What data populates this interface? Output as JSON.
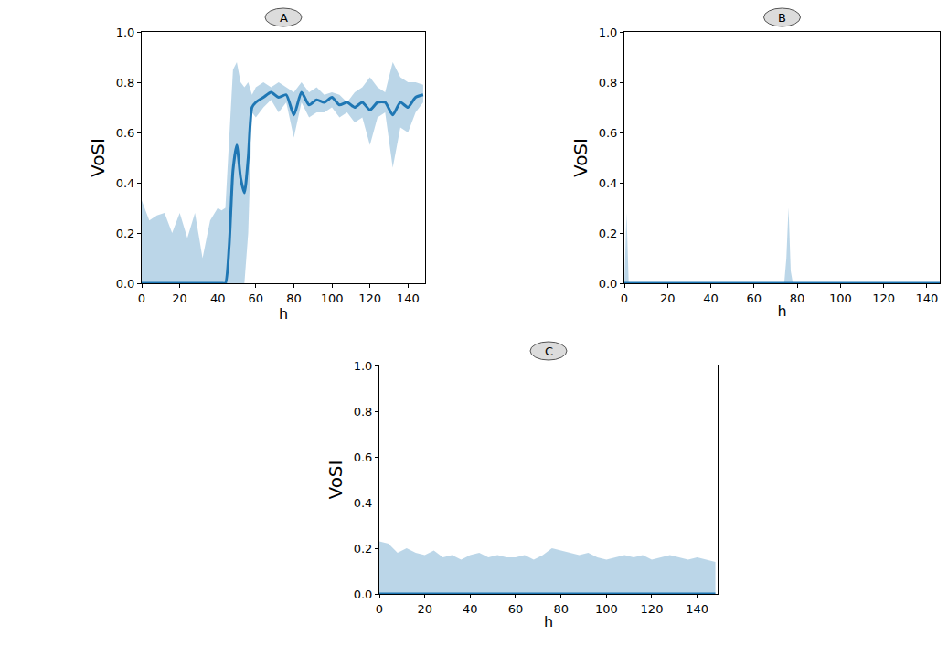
{
  "chart_data": [
    {
      "type": "line",
      "title": "A",
      "x_label": "h",
      "y_label": "VoSI",
      "x": [
        0,
        4,
        8,
        12,
        16,
        20,
        24,
        28,
        32,
        36,
        40,
        42,
        44,
        46,
        48,
        50,
        52,
        54,
        56,
        58,
        60,
        64,
        68,
        72,
        76,
        80,
        84,
        88,
        92,
        96,
        100,
        104,
        108,
        112,
        116,
        120,
        124,
        128,
        132,
        136,
        140,
        144,
        148
      ],
      "series": [
        {
          "color": "#1f77b4",
          "values": [
            0,
            0,
            0,
            0,
            0,
            0,
            0,
            0,
            0,
            0,
            0,
            0,
            0,
            0.15,
            0.45,
            0.55,
            0.42,
            0.36,
            0.5,
            0.7,
            0.72,
            0.74,
            0.76,
            0.74,
            0.75,
            0.67,
            0.76,
            0.71,
            0.73,
            0.72,
            0.74,
            0.71,
            0.72,
            0.7,
            0.72,
            0.69,
            0.72,
            0.72,
            0.67,
            0.72,
            0.7,
            0.74,
            0.75
          ],
          "lower": [
            0,
            0,
            0,
            0,
            0,
            0,
            0,
            0,
            0,
            0,
            0,
            0,
            0,
            0,
            0,
            0,
            0,
            0,
            0.2,
            0.68,
            0.66,
            0.7,
            0.73,
            0.68,
            0.72,
            0.58,
            0.72,
            0.66,
            0.68,
            0.68,
            0.7,
            0.66,
            0.68,
            0.64,
            0.66,
            0.55,
            0.66,
            0.68,
            0.46,
            0.62,
            0.6,
            0.68,
            0.72
          ],
          "upper": [
            0.33,
            0.25,
            0.27,
            0.28,
            0.2,
            0.28,
            0.18,
            0.28,
            0.1,
            0.25,
            0.3,
            0.29,
            0.3,
            0.6,
            0.85,
            0.88,
            0.8,
            0.78,
            0.8,
            0.75,
            0.78,
            0.8,
            0.78,
            0.8,
            0.78,
            0.76,
            0.8,
            0.76,
            0.78,
            0.75,
            0.76,
            0.75,
            0.72,
            0.76,
            0.78,
            0.82,
            0.78,
            0.76,
            0.88,
            0.82,
            0.8,
            0.8,
            0.79
          ]
        }
      ],
      "xlim": [
        0,
        149
      ],
      "ylim": [
        0,
        1
      ],
      "xticks": [
        0,
        20,
        40,
        60,
        80,
        100,
        120,
        140
      ],
      "yticks": [
        {
          "value": 0,
          "label": "0.0"
        },
        {
          "value": 0.2,
          "label": "0.2"
        },
        {
          "value": 0.4,
          "label": "0.4"
        },
        {
          "value": 0.6,
          "label": "0.6"
        },
        {
          "value": 0.8,
          "label": "0.8"
        },
        {
          "value": 1,
          "label": "1.0"
        }
      ]
    },
    {
      "type": "line",
      "title": "B",
      "x_label": "h",
      "y_label": "VoSI",
      "x": [
        0,
        1,
        2,
        3,
        74,
        75,
        76,
        77,
        78,
        146
      ],
      "series": [
        {
          "color": "#1f77b4",
          "values": [
            0,
            0,
            0,
            0,
            0,
            0,
            0,
            0,
            0,
            0
          ],
          "lower": [
            0,
            0,
            0,
            0,
            0,
            0,
            0,
            0,
            0,
            0
          ],
          "upper": [
            0,
            0.28,
            0,
            0,
            0,
            0.1,
            0.3,
            0.05,
            0,
            0
          ]
        }
      ],
      "xlim": [
        0,
        146
      ],
      "ylim": [
        0,
        1
      ],
      "xticks": [
        0,
        20,
        40,
        60,
        80,
        100,
        120,
        140
      ],
      "yticks": [
        {
          "value": 0,
          "label": "0.0"
        },
        {
          "value": 0.2,
          "label": "0.2"
        },
        {
          "value": 0.4,
          "label": "0.4"
        },
        {
          "value": 0.6,
          "label": "0.6"
        },
        {
          "value": 0.8,
          "label": "0.8"
        },
        {
          "value": 1,
          "label": "1.0"
        }
      ]
    },
    {
      "type": "line",
      "title": "C",
      "x_label": "h",
      "y_label": "VoSI",
      "x": [
        0,
        4,
        8,
        12,
        16,
        20,
        24,
        28,
        32,
        36,
        40,
        44,
        48,
        52,
        56,
        60,
        64,
        68,
        72,
        76,
        80,
        84,
        88,
        92,
        96,
        100,
        104,
        108,
        112,
        116,
        120,
        124,
        128,
        132,
        136,
        140,
        144,
        148
      ],
      "series": [
        {
          "color": "#1f77b4",
          "values": [
            0,
            0,
            0,
            0,
            0,
            0,
            0,
            0,
            0,
            0,
            0,
            0,
            0,
            0,
            0,
            0,
            0,
            0,
            0,
            0,
            0,
            0,
            0,
            0,
            0,
            0,
            0,
            0,
            0,
            0,
            0,
            0,
            0,
            0,
            0,
            0,
            0,
            0
          ],
          "lower": [
            0,
            0,
            0,
            0,
            0,
            0,
            0,
            0,
            0,
            0,
            0,
            0,
            0,
            0,
            0,
            0,
            0,
            0,
            0,
            0,
            0,
            0,
            0,
            0,
            0,
            0,
            0,
            0,
            0,
            0,
            0,
            0,
            0,
            0,
            0,
            0,
            0,
            0
          ],
          "upper": [
            0.23,
            0.22,
            0.18,
            0.2,
            0.18,
            0.17,
            0.19,
            0.16,
            0.17,
            0.15,
            0.17,
            0.18,
            0.16,
            0.17,
            0.16,
            0.16,
            0.17,
            0.15,
            0.17,
            0.2,
            0.19,
            0.18,
            0.17,
            0.18,
            0.16,
            0.15,
            0.16,
            0.17,
            0.16,
            0.17,
            0.15,
            0.16,
            0.17,
            0.16,
            0.15,
            0.16,
            0.15,
            0.14
          ]
        }
      ],
      "xlim": [
        0,
        149
      ],
      "ylim": [
        0,
        1
      ],
      "xticks": [
        0,
        20,
        40,
        60,
        80,
        100,
        120,
        140
      ],
      "yticks": [
        {
          "value": 0,
          "label": "0.0"
        },
        {
          "value": 0.2,
          "label": "0.2"
        },
        {
          "value": 0.4,
          "label": "0.4"
        },
        {
          "value": 0.6,
          "label": "0.6"
        },
        {
          "value": 0.8,
          "label": "0.8"
        },
        {
          "value": 1,
          "label": "1.0"
        }
      ]
    }
  ]
}
